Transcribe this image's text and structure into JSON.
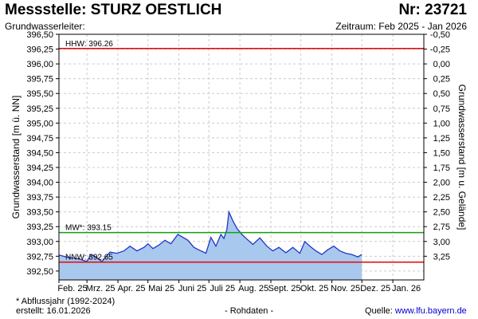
{
  "header": {
    "title": "Messstelle: STURZ OESTLICH",
    "number": "Nr: 23721",
    "aquifer": "Grundwasserleiter:",
    "period": "Zeitraum: Feb 2025 - Jan 2026"
  },
  "footer": {
    "footnote": "* Abflussjahr (1992-2024)",
    "created": "erstellt:  16.01.2026",
    "rawdata": "- Rohdaten -",
    "source_label": "Quelle: ",
    "source_url": "www.lfu.bayern.de"
  },
  "colors": {
    "fill": "#a9c8ee",
    "line": "#1f36c8",
    "hhw": "#e01010",
    "mw": "#12a012",
    "nnw": "#e01010",
    "grid": "#cccccc"
  },
  "chart_data": {
    "type": "area",
    "ylabel": "Grundwasserstand [m ü. NN]",
    "ylabel_right": "Grundwasserstand [m u. Gelände]",
    "ylim": [
      392.35,
      396.5
    ],
    "yticks": [
      "396,50",
      "396,25",
      "396,00",
      "395,75",
      "395,50",
      "395,25",
      "395,00",
      "394,75",
      "394,50",
      "394,25",
      "394,00",
      "393,75",
      "393,50",
      "393,25",
      "393,00",
      "392,75",
      "392,50"
    ],
    "yticks_right": [
      "-0,50",
      "-0,25",
      "0,00",
      "0,25",
      "0,50",
      "0,75",
      "1,00",
      "1,25",
      "1,50",
      "1,75",
      "2,00",
      "2,25",
      "2,50",
      "2,75",
      "3,00",
      "3,25"
    ],
    "right_axis_reference": 396.0,
    "xlim": [
      "2025-02-01",
      "2026-02-01"
    ],
    "xticks": [
      {
        "date": "2025-02-01",
        "label": "Feb. 25"
      },
      {
        "date": "2025-03-01",
        "label": "Mrz. 25"
      },
      {
        "date": "2025-04-01",
        "label": "Apr. 25"
      },
      {
        "date": "2025-05-01",
        "label": "Mai 25"
      },
      {
        "date": "2025-06-01",
        "label": "Juni 25"
      },
      {
        "date": "2025-07-01",
        "label": "Juli 25"
      },
      {
        "date": "2025-08-01",
        "label": "Aug. 25"
      },
      {
        "date": "2025-09-01",
        "label": "Sept. 25"
      },
      {
        "date": "2025-10-01",
        "label": "Okt. 25"
      },
      {
        "date": "2025-11-01",
        "label": "Nov. 25"
      },
      {
        "date": "2025-12-01",
        "label": "Dez. 25"
      },
      {
        "date": "2026-01-01",
        "label": "Jan. 26"
      }
    ],
    "reference_lines": [
      {
        "key": "hhw",
        "label": "HHW: 396.26",
        "value": 396.26
      },
      {
        "key": "mw",
        "label": "MW*: 393.15",
        "value": 393.15
      },
      {
        "key": "nnw",
        "label": "NNW: 392.65",
        "value": 392.65
      }
    ],
    "grid": true,
    "series": [
      {
        "points": [
          [
            "2025-02-01",
            392.77
          ],
          [
            "2025-02-08",
            392.74
          ],
          [
            "2025-02-15",
            392.72
          ],
          [
            "2025-02-22",
            392.7
          ],
          [
            "2025-03-01",
            392.66
          ],
          [
            "2025-03-05",
            392.78
          ],
          [
            "2025-03-10",
            392.74
          ],
          [
            "2025-03-16",
            392.66
          ],
          [
            "2025-03-24",
            392.82
          ],
          [
            "2025-03-31",
            392.8
          ],
          [
            "2025-04-07",
            392.84
          ],
          [
            "2025-04-13",
            392.92
          ],
          [
            "2025-04-20",
            392.84
          ],
          [
            "2025-04-27",
            392.9
          ],
          [
            "2025-05-01",
            392.96
          ],
          [
            "2025-05-06",
            392.88
          ],
          [
            "2025-05-12",
            392.94
          ],
          [
            "2025-05-18",
            393.02
          ],
          [
            "2025-05-24",
            392.96
          ],
          [
            "2025-05-31",
            393.12
          ],
          [
            "2025-06-05",
            393.07
          ],
          [
            "2025-06-10",
            393.02
          ],
          [
            "2025-06-16",
            392.9
          ],
          [
            "2025-06-22",
            392.85
          ],
          [
            "2025-06-28",
            392.8
          ],
          [
            "2025-07-03",
            393.07
          ],
          [
            "2025-07-08",
            392.92
          ],
          [
            "2025-07-13",
            393.12
          ],
          [
            "2025-07-16",
            393.05
          ],
          [
            "2025-07-19",
            393.2
          ],
          [
            "2025-07-21",
            393.5
          ],
          [
            "2025-07-25",
            393.35
          ],
          [
            "2025-07-29",
            393.22
          ],
          [
            "2025-08-03",
            393.12
          ],
          [
            "2025-08-08",
            393.04
          ],
          [
            "2025-08-14",
            392.95
          ],
          [
            "2025-08-21",
            393.06
          ],
          [
            "2025-08-28",
            392.92
          ],
          [
            "2025-09-03",
            392.84
          ],
          [
            "2025-09-09",
            392.9
          ],
          [
            "2025-09-16",
            392.81
          ],
          [
            "2025-09-23",
            392.9
          ],
          [
            "2025-09-30",
            392.8
          ],
          [
            "2025-10-05",
            393.0
          ],
          [
            "2025-10-10",
            392.92
          ],
          [
            "2025-10-16",
            392.84
          ],
          [
            "2025-10-22",
            392.78
          ],
          [
            "2025-10-28",
            392.86
          ],
          [
            "2025-11-03",
            392.92
          ],
          [
            "2025-11-09",
            392.84
          ],
          [
            "2025-11-15",
            392.8
          ],
          [
            "2025-11-21",
            392.78
          ],
          [
            "2025-11-27",
            392.74
          ],
          [
            "2025-12-01",
            392.78
          ]
        ]
      }
    ]
  }
}
